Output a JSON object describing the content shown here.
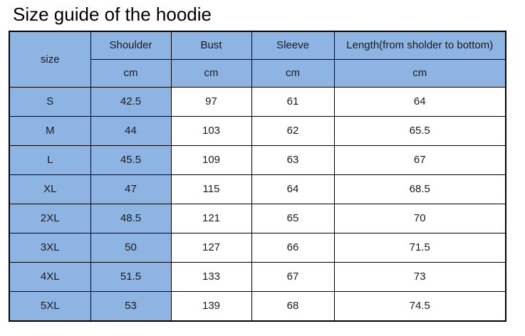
{
  "page": {
    "title": "Size guide of the hoodie"
  },
  "colors": {
    "header_fill": "#8db4e2",
    "data_fill": "#ffffff",
    "border": "#000000",
    "text": "#1a1a1a"
  },
  "table": {
    "size_header": "size",
    "columns": [
      "Shoulder",
      "Bust",
      "Sleeve",
      "Length(from sholder to bottom)"
    ],
    "unit_row": [
      "cm",
      "cm",
      "cm",
      "cm"
    ],
    "rows": [
      {
        "size": "S",
        "shoulder": "42.5",
        "bust": "97",
        "sleeve": "61",
        "length": "64"
      },
      {
        "size": "M",
        "shoulder": "44",
        "bust": "103",
        "sleeve": "62",
        "length": "65.5"
      },
      {
        "size": "L",
        "shoulder": "45.5",
        "bust": "109",
        "sleeve": "63",
        "length": "67"
      },
      {
        "size": "XL",
        "shoulder": "47",
        "bust": "115",
        "sleeve": "64",
        "length": "68.5"
      },
      {
        "size": "2XL",
        "shoulder": "48.5",
        "bust": "121",
        "sleeve": "65",
        "length": "70"
      },
      {
        "size": "3XL",
        "shoulder": "50",
        "bust": "127",
        "sleeve": "66",
        "length": "71.5"
      },
      {
        "size": "4XL",
        "shoulder": "51.5",
        "bust": "133",
        "sleeve": "67",
        "length": "73"
      },
      {
        "size": "5XL",
        "shoulder": "53",
        "bust": "139",
        "sleeve": "68",
        "length": "74.5"
      }
    ]
  },
  "chart_data": {
    "type": "table",
    "title": "Size guide of the hoodie",
    "columns": [
      "size",
      "Shoulder (cm)",
      "Bust (cm)",
      "Sleeve (cm)",
      "Length(from sholder to bottom) (cm)"
    ],
    "rows": [
      [
        "S",
        42.5,
        97,
        61,
        64
      ],
      [
        "M",
        44,
        103,
        62,
        65.5
      ],
      [
        "L",
        45.5,
        109,
        63,
        67
      ],
      [
        "XL",
        47,
        115,
        64,
        68.5
      ],
      [
        "2XL",
        48.5,
        121,
        65,
        70
      ],
      [
        "3XL",
        50,
        127,
        66,
        71.5
      ],
      [
        "4XL",
        51.5,
        133,
        67,
        73
      ],
      [
        "5XL",
        53,
        139,
        68,
        74.5
      ]
    ]
  }
}
